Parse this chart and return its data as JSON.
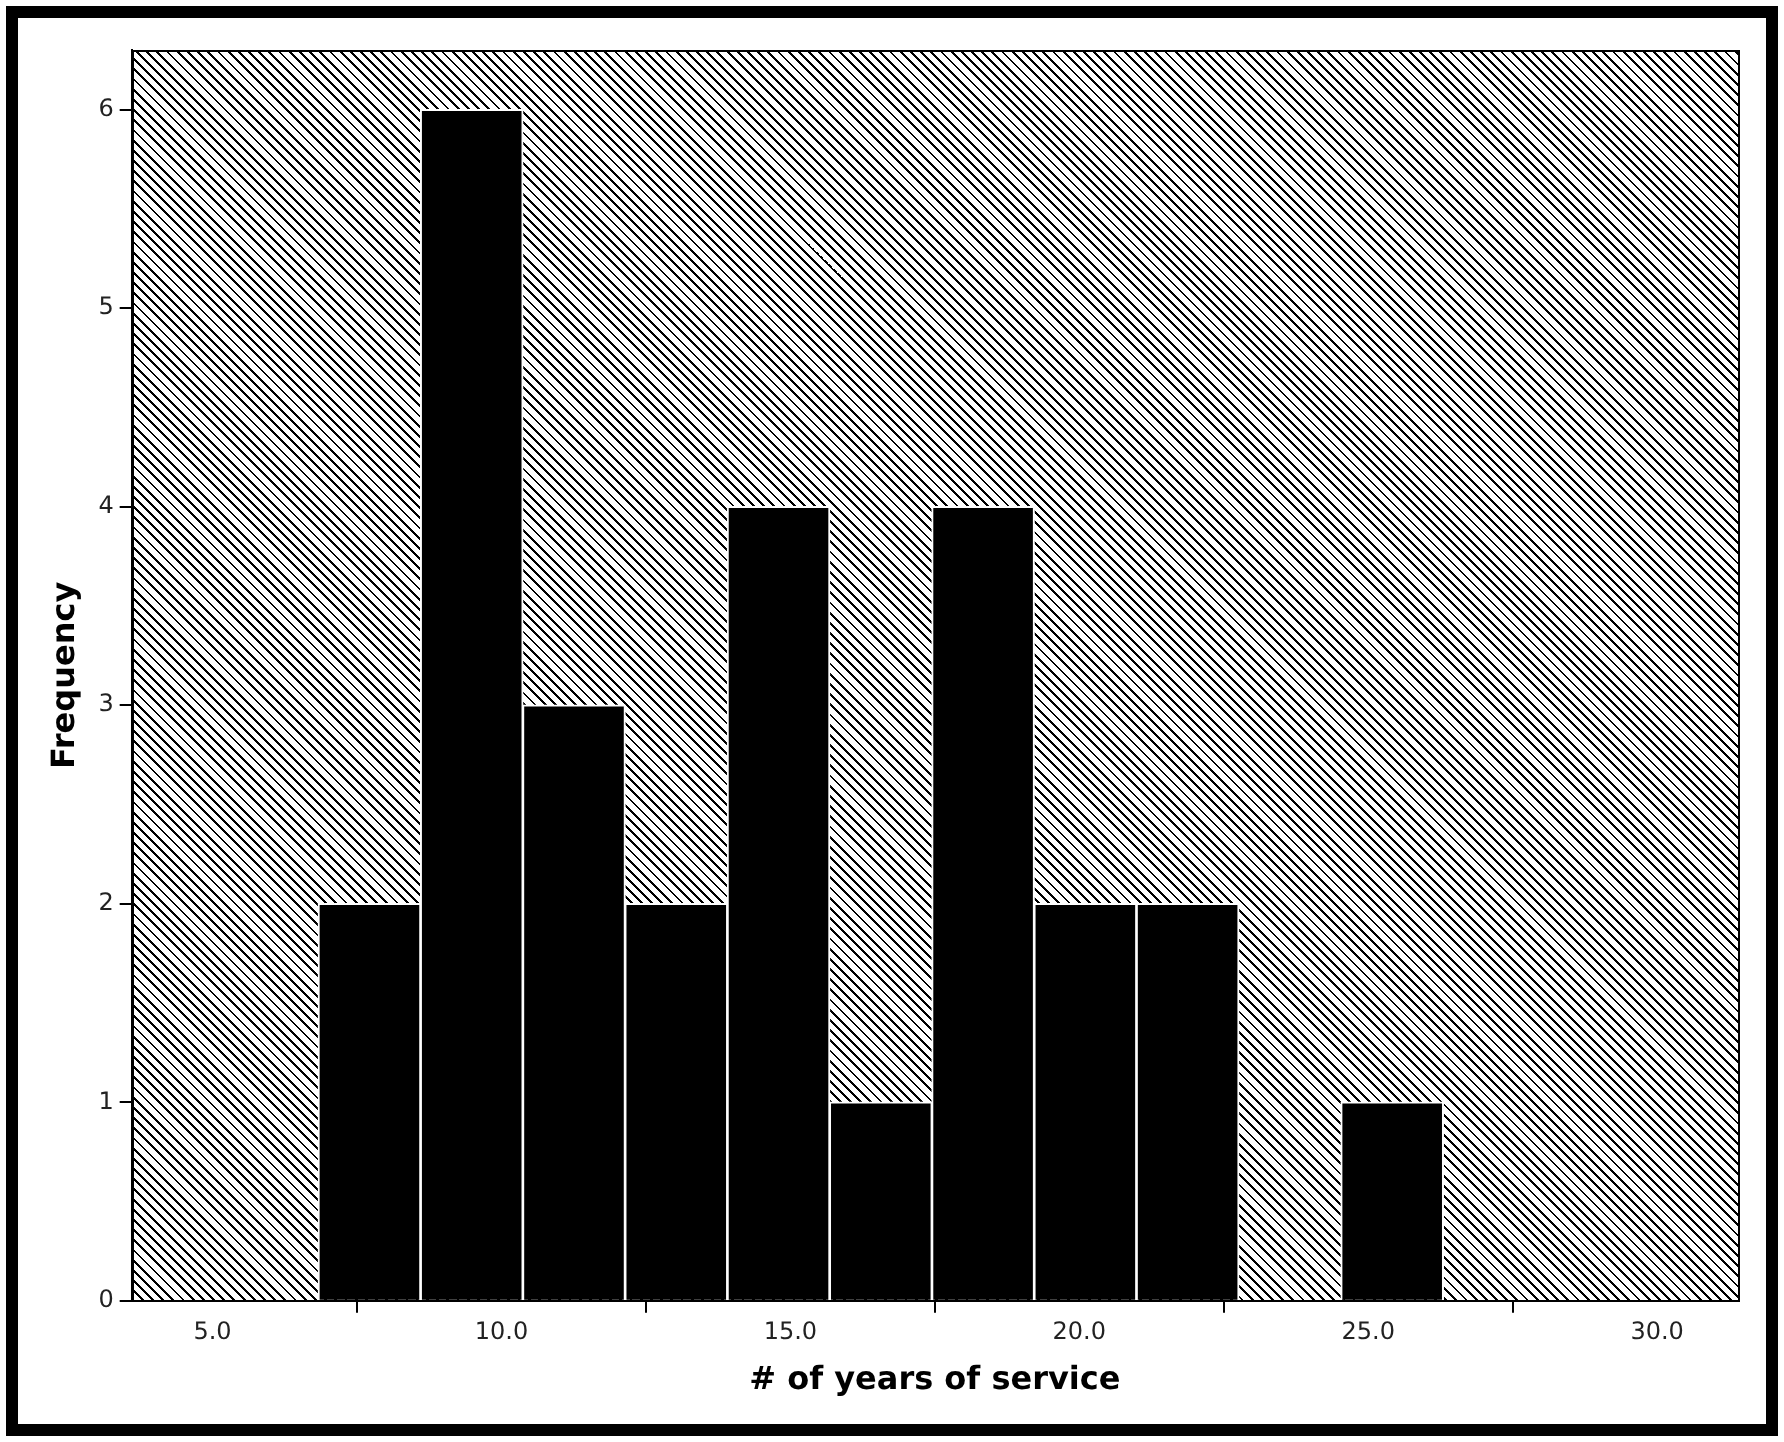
{
  "chart_data": {
    "type": "histogram",
    "xlabel": "# of years of service",
    "ylabel": "Frequency",
    "bins": [
      6.83,
      8.6,
      10.37,
      12.14,
      13.91,
      15.68,
      17.45,
      19.22,
      20.99,
      22.76,
      24.53,
      26.3
    ],
    "values": [
      2,
      6,
      3,
      2,
      4,
      1,
      4,
      2,
      2,
      0,
      1
    ],
    "color": "#000000",
    "xlim": [
      3.6,
      31.4
    ],
    "xticks": [
      {
        "value": 5,
        "label": "5.0"
      },
      {
        "value": 10,
        "label": "10.0"
      },
      {
        "value": 15,
        "label": "15.0"
      },
      {
        "value": 20,
        "label": "20.0"
      },
      {
        "value": 25,
        "label": "25.0"
      },
      {
        "value": 30,
        "label": "30.0"
      }
    ],
    "ylim": [
      0,
      6.3
    ],
    "yticks": [
      0,
      1,
      2,
      3,
      4,
      5,
      6
    ],
    "grid": false,
    "legend": false
  }
}
